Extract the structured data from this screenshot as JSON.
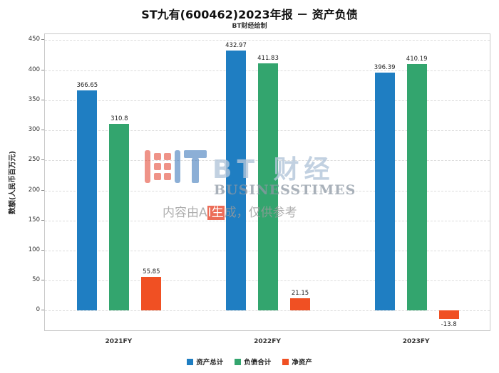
{
  "title": "ST九有(600462)2023年报 － 资产负债",
  "subtitle": "BT财经绘制",
  "chart_data": {
    "type": "bar",
    "categories": [
      "2021FY",
      "2022FY",
      "2023FY"
    ],
    "series": [
      {
        "name": "资产总计",
        "color": "#1f7ec2",
        "values": [
          366.65,
          432.97,
          396.39
        ]
      },
      {
        "name": "负债合计",
        "color": "#33a56e",
        "values": [
          310.8,
          411.83,
          410.19
        ]
      },
      {
        "name": "净资产",
        "color": "#f05023",
        "values": [
          55.85,
          21.15,
          -13.8
        ]
      }
    ],
    "title": "ST九有(600462)2023年报 － 资产负债",
    "xlabel": "",
    "ylabel": "数额(人民币百万元)",
    "ylim": [
      -35,
      460
    ],
    "yticks": [
      0,
      50,
      100,
      150,
      200,
      250,
      300,
      350,
      400,
      450
    ],
    "grid": "dashed-horizontal",
    "legend_position": "bottom"
  },
  "watermark": {
    "brand_cn": "BT 财经",
    "brand_en": "BUSINESSTIMES",
    "disclaimer_pre": "内容由A",
    "disclaimer_highlight": "I生",
    "disclaimer_post": "成，仅供参考"
  }
}
